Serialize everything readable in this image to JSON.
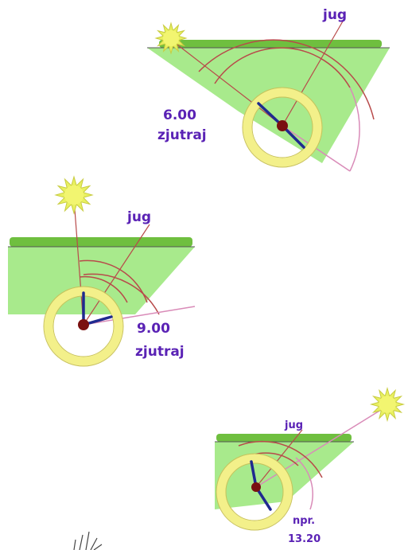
{
  "panels": [
    {
      "south_label": "jug",
      "time": "6.00",
      "time_note": "zjutraj"
    },
    {
      "south_label": "jug",
      "time": "9.00",
      "time_note": "zjutraj"
    },
    {
      "south_label": "jug",
      "prefix": "npr.",
      "time": "13.20"
    }
  ]
}
